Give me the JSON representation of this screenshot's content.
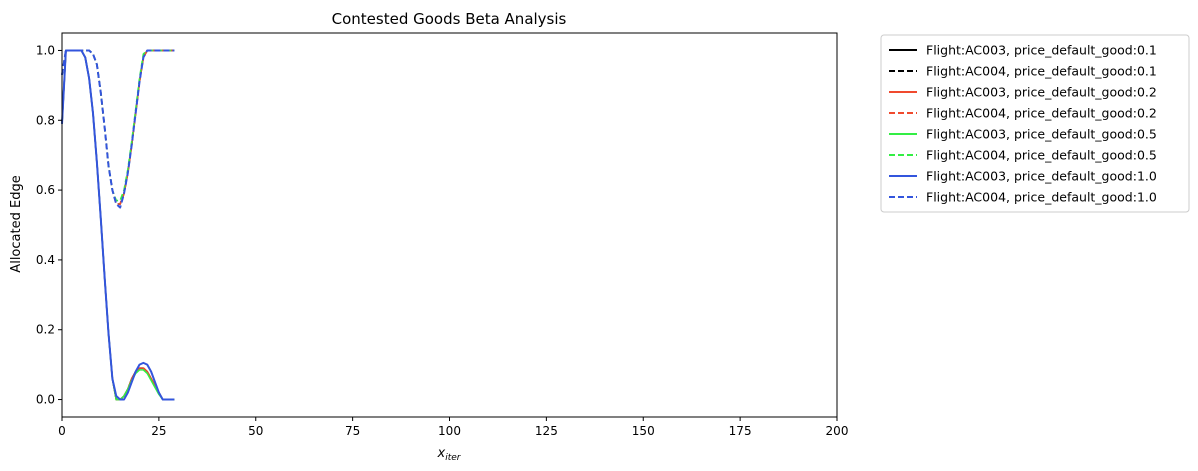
{
  "chart_data": {
    "type": "line",
    "title": "Contested Goods Beta Analysis",
    "xlabel": "x",
    "xlabel_subscript": "iter",
    "ylabel": "Allocated Edge",
    "xlim": [
      0,
      200
    ],
    "ylim": [
      -0.05,
      1.05
    ],
    "xticks": [
      0,
      25,
      50,
      75,
      100,
      125,
      150,
      175,
      200
    ],
    "yticks": [
      0.0,
      0.2,
      0.4,
      0.6,
      0.8,
      1.0
    ],
    "grid": false,
    "legend_position": "outside-right",
    "x": [
      0,
      1,
      2,
      3,
      4,
      5,
      6,
      7,
      8,
      9,
      10,
      11,
      12,
      13,
      14,
      15,
      16,
      17,
      18,
      19,
      20,
      21,
      22,
      23,
      24,
      25,
      26,
      27,
      28,
      29
    ],
    "series": [
      {
        "name": "Flight:AC003, price_default_good:0.1",
        "color": "#000000",
        "dash": false,
        "values": [
          0.79,
          1.0,
          1.0,
          1.0,
          1.0,
          1.0,
          0.98,
          0.92,
          0.82,
          0.68,
          0.52,
          0.35,
          0.19,
          0.06,
          0.0,
          0.0,
          0.01,
          0.03,
          0.06,
          0.08,
          0.09,
          0.09,
          0.08,
          0.06,
          0.04,
          0.02,
          0.0,
          0.0,
          0.0,
          0.0
        ]
      },
      {
        "name": "Flight:AC004, price_default_good:0.1",
        "color": "#000000",
        "dash": true,
        "values": [
          0.93,
          1.0,
          1.0,
          1.0,
          1.0,
          1.0,
          1.0,
          1.0,
          0.99,
          0.96,
          0.88,
          0.78,
          0.67,
          0.6,
          0.56,
          0.56,
          0.59,
          0.65,
          0.73,
          0.82,
          0.91,
          0.98,
          1.0,
          1.0,
          1.0,
          1.0,
          1.0,
          1.0,
          1.0,
          1.0
        ]
      },
      {
        "name": "Flight:AC003, price_default_good:0.2",
        "color": "#f04a2e",
        "dash": false,
        "values": [
          0.79,
          1.0,
          1.0,
          1.0,
          1.0,
          1.0,
          0.98,
          0.92,
          0.82,
          0.68,
          0.52,
          0.35,
          0.19,
          0.06,
          0.0,
          0.0,
          0.01,
          0.03,
          0.06,
          0.08,
          0.09,
          0.09,
          0.08,
          0.06,
          0.04,
          0.02,
          0.0,
          0.0,
          0.0,
          0.0
        ]
      },
      {
        "name": "Flight:AC004, price_default_good:0.2",
        "color": "#f04a2e",
        "dash": true,
        "values": [
          0.93,
          1.0,
          1.0,
          1.0,
          1.0,
          1.0,
          1.0,
          1.0,
          0.99,
          0.96,
          0.88,
          0.78,
          0.67,
          0.6,
          0.56,
          0.56,
          0.59,
          0.65,
          0.73,
          0.82,
          0.91,
          0.98,
          1.0,
          1.0,
          1.0,
          1.0,
          1.0,
          1.0,
          1.0,
          1.0
        ]
      },
      {
        "name": "Flight:AC003, price_default_good:0.5",
        "color": "#33ee44",
        "dash": false,
        "values": [
          0.79,
          1.0,
          1.0,
          1.0,
          1.0,
          1.0,
          0.98,
          0.92,
          0.82,
          0.68,
          0.52,
          0.35,
          0.19,
          0.06,
          0.0,
          0.0,
          0.01,
          0.03,
          0.055,
          0.075,
          0.085,
          0.085,
          0.075,
          0.055,
          0.035,
          0.015,
          0.0,
          0.0,
          0.0,
          0.0
        ]
      },
      {
        "name": "Flight:AC004, price_default_good:0.5",
        "color": "#33ee44",
        "dash": true,
        "values": [
          0.93,
          1.0,
          1.0,
          1.0,
          1.0,
          1.0,
          1.0,
          1.0,
          0.99,
          0.96,
          0.88,
          0.78,
          0.67,
          0.6,
          0.57,
          0.57,
          0.6,
          0.66,
          0.74,
          0.83,
          0.92,
          0.99,
          1.0,
          1.0,
          1.0,
          1.0,
          1.0,
          1.0,
          1.0,
          1.0
        ]
      },
      {
        "name": "Flight:AC003, price_default_good:1.0",
        "color": "#3355dd",
        "dash": false,
        "values": [
          0.79,
          1.0,
          1.0,
          1.0,
          1.0,
          1.0,
          0.98,
          0.92,
          0.82,
          0.68,
          0.52,
          0.35,
          0.19,
          0.06,
          0.01,
          0.0,
          0.0,
          0.02,
          0.05,
          0.08,
          0.1,
          0.105,
          0.1,
          0.08,
          0.05,
          0.02,
          0.0,
          0.0,
          0.0,
          0.0
        ]
      },
      {
        "name": "Flight:AC004, price_default_good:1.0",
        "color": "#3355dd",
        "dash": true,
        "values": [
          0.93,
          1.0,
          1.0,
          1.0,
          1.0,
          1.0,
          1.0,
          1.0,
          0.99,
          0.96,
          0.88,
          0.78,
          0.67,
          0.6,
          0.56,
          0.55,
          0.59,
          0.65,
          0.73,
          0.82,
          0.91,
          0.98,
          1.0,
          1.0,
          1.0,
          1.0,
          1.0,
          1.0,
          1.0,
          1.0
        ]
      }
    ]
  }
}
